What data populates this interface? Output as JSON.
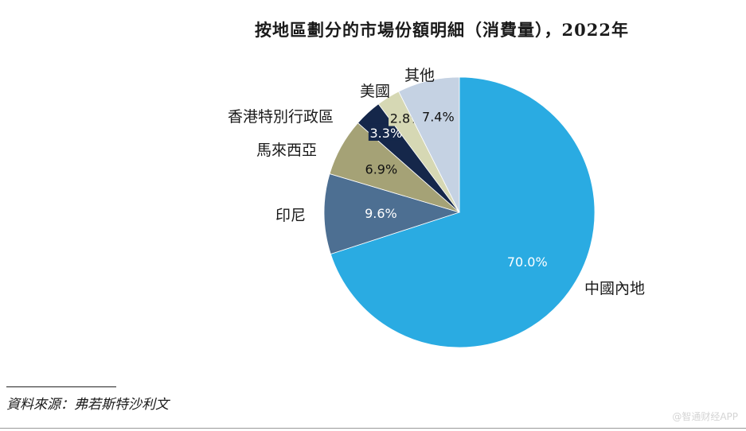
{
  "chart_data": {
    "type": "pie",
    "title": "按地區劃分的市場份額明細（消費量），2022年",
    "series": [
      {
        "name": "中國內地",
        "value": 70.0,
        "value_label": "70.0%",
        "color": "#2aabe2",
        "text_color": "#ffffff"
      },
      {
        "name": "印尼",
        "value": 9.6,
        "value_label": "9.6%",
        "color": "#4d6f92",
        "text_color": "#ffffff"
      },
      {
        "name": "馬來西亞",
        "value": 6.9,
        "value_label": "6.9%",
        "color": "#a5a276",
        "text_color": "#111111"
      },
      {
        "name": "香港特別行政區",
        "value": 3.3,
        "value_label": "3.3%",
        "color": "#15274a",
        "text_color": "#ffffff"
      },
      {
        "name": "美國",
        "value": 2.8,
        "value_label": "2.8%",
        "color": "#d6d8b4",
        "text_color": "#111111"
      },
      {
        "name": "其他",
        "value": 7.4,
        "value_label": "7.4%",
        "color": "#c5d2e3",
        "text_color": "#111111"
      }
    ]
  },
  "source": "資料來源：弗若斯特沙利文",
  "watermark": "@智通财经APP"
}
